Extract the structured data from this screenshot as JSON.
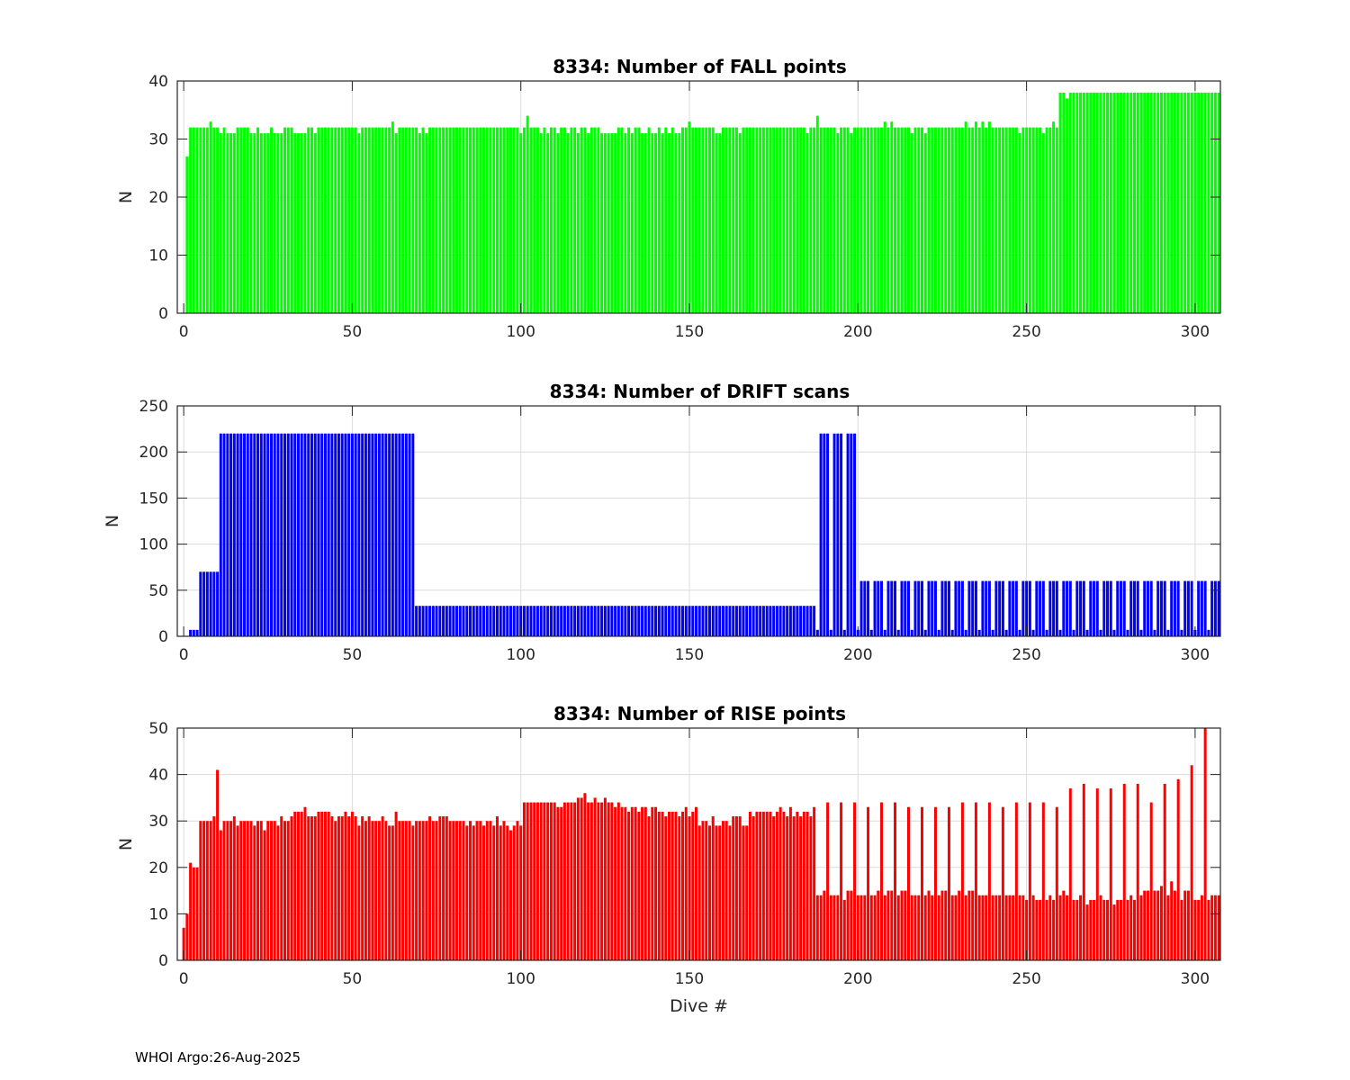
{
  "chart_data": [
    {
      "type": "bar",
      "title": "8334: Number of FALL points",
      "xlabel": "",
      "ylabel": "N",
      "color": "#00ff00",
      "xlim": [
        -1.9,
        307.5
      ],
      "ylim": [
        0,
        40
      ],
      "xticks": [
        0,
        50,
        100,
        150,
        200,
        250,
        300
      ],
      "yticks": [
        0,
        10,
        20,
        30,
        40
      ],
      "grid": true,
      "x_start": 0,
      "values": [
        0,
        27,
        32,
        32,
        32,
        32,
        32,
        32,
        33,
        32,
        32,
        31,
        32,
        31,
        31,
        31,
        32,
        32,
        32,
        32,
        31,
        31,
        32,
        31,
        31,
        31,
        32,
        31,
        31,
        31,
        32,
        32,
        32,
        31,
        31,
        31,
        31,
        32,
        32,
        31,
        32,
        32,
        32,
        32,
        32,
        32,
        32,
        32,
        32,
        32,
        32,
        32,
        31,
        32,
        32,
        32,
        32,
        32,
        32,
        32,
        32,
        32,
        33,
        31,
        32,
        32,
        32,
        32,
        32,
        32,
        31,
        32,
        31,
        32,
        32,
        32,
        32,
        32,
        32,
        32,
        32,
        32,
        32,
        32,
        32,
        32,
        32,
        32,
        32,
        32,
        32,
        32,
        32,
        32,
        32,
        32,
        32,
        32,
        32,
        32,
        31,
        32,
        34,
        32,
        32,
        32,
        31,
        32,
        31,
        32,
        32,
        31,
        32,
        32,
        31,
        32,
        32,
        31,
        32,
        32,
        31,
        32,
        32,
        32,
        31,
        31,
        31,
        31,
        31,
        32,
        32,
        31,
        32,
        31,
        32,
        32,
        31,
        31,
        32,
        31,
        31,
        32,
        31,
        32,
        31,
        32,
        31,
        31,
        32,
        32,
        33,
        32,
        32,
        32,
        32,
        32,
        32,
        32,
        31,
        31,
        32,
        32,
        32,
        32,
        32,
        31,
        32,
        32,
        32,
        32,
        32,
        32,
        32,
        32,
        32,
        32,
        32,
        32,
        32,
        32,
        32,
        32,
        32,
        32,
        32,
        31,
        32,
        32,
        34,
        32,
        32,
        32,
        32,
        32,
        31,
        32,
        32,
        32,
        31,
        32,
        32,
        32,
        32,
        32,
        32,
        32,
        32,
        32,
        33,
        32,
        33,
        32,
        32,
        32,
        32,
        32,
        31,
        32,
        32,
        32,
        31,
        32,
        32,
        32,
        32,
        32,
        32,
        32,
        32,
        32,
        32,
        32,
        33,
        32,
        32,
        33,
        32,
        33,
        32,
        33,
        32,
        32,
        32,
        32,
        32,
        32,
        32,
        32,
        31,
        32,
        32,
        32,
        32,
        32,
        32,
        31,
        32,
        32,
        33,
        32,
        38,
        38,
        37,
        38,
        38,
        38,
        38,
        38,
        38,
        38,
        38,
        38,
        38,
        38,
        38,
        38,
        38,
        38,
        38,
        38,
        38,
        38,
        38,
        38,
        38,
        38,
        38,
        38,
        38,
        38,
        38,
        38,
        38,
        38,
        38,
        38,
        38,
        38,
        38,
        38,
        38,
        38,
        38,
        38,
        38,
        38,
        38,
        38
      ]
    },
    {
      "type": "bar",
      "title": "8334: Number of DRIFT scans",
      "xlabel": "",
      "ylabel": "N",
      "color": "#0000ff",
      "xlim": [
        -1.9,
        307.5
      ],
      "ylim": [
        0,
        250
      ],
      "xticks": [
        0,
        50,
        100,
        150,
        200,
        250,
        300
      ],
      "yticks": [
        0,
        50,
        100,
        150,
        200,
        250
      ],
      "grid": true,
      "x_start": 0,
      "values": [
        0,
        0,
        7,
        7,
        7,
        70,
        70,
        70,
        70,
        70,
        70,
        220,
        220,
        220,
        220,
        220,
        220,
        220,
        220,
        220,
        220,
        220,
        220,
        220,
        220,
        220,
        220,
        220,
        220,
        220,
        220,
        220,
        220,
        220,
        220,
        220,
        220,
        220,
        220,
        220,
        220,
        220,
        220,
        220,
        220,
        220,
        220,
        220,
        220,
        220,
        220,
        220,
        220,
        220,
        220,
        220,
        220,
        220,
        220,
        220,
        220,
        220,
        220,
        220,
        220,
        220,
        220,
        220,
        220,
        33,
        33,
        33,
        33,
        33,
        33,
        33,
        33,
        33,
        33,
        33,
        33,
        33,
        33,
        33,
        33,
        33,
        33,
        33,
        33,
        33,
        33,
        33,
        33,
        33,
        33,
        33,
        33,
        33,
        33,
        33,
        33,
        33,
        33,
        33,
        33,
        33,
        33,
        33,
        33,
        33,
        33,
        33,
        33,
        33,
        33,
        33,
        33,
        33,
        33,
        33,
        33,
        33,
        33,
        33,
        33,
        33,
        33,
        33,
        33,
        33,
        33,
        33,
        33,
        33,
        33,
        33,
        33,
        33,
        33,
        33,
        33,
        33,
        33,
        33,
        33,
        33,
        33,
        33,
        33,
        33,
        33,
        33,
        33,
        33,
        33,
        33,
        33,
        33,
        33,
        33,
        33,
        33,
        33,
        33,
        33,
        33,
        33,
        33,
        33,
        33,
        33,
        33,
        33,
        33,
        33,
        33,
        33,
        33,
        33,
        33,
        33,
        33,
        33,
        33,
        33,
        33,
        33,
        33,
        7,
        220,
        220,
        220,
        7,
        220,
        220,
        220,
        7,
        220,
        220,
        220,
        7,
        60,
        60,
        60,
        7,
        60,
        60,
        60,
        7,
        60,
        60,
        60,
        7,
        60,
        60,
        60,
        7,
        60,
        60,
        60,
        7,
        60,
        60,
        60,
        7,
        60,
        60,
        60,
        7,
        60,
        60,
        60,
        7,
        60,
        60,
        60,
        7,
        60,
        60,
        60,
        7,
        60,
        60,
        60,
        7,
        60,
        60,
        60,
        7,
        60,
        60,
        60,
        7,
        60,
        60,
        60,
        7,
        60,
        60,
        60,
        7,
        60,
        60,
        60,
        7,
        60,
        60,
        60,
        7,
        60,
        60,
        60,
        7,
        60,
        60,
        60,
        7,
        60,
        60,
        60,
        7,
        60,
        60,
        60,
        7,
        60,
        60,
        60,
        7,
        60,
        60,
        60,
        7,
        60,
        60,
        60,
        7,
        60,
        60,
        60,
        7,
        60,
        60,
        60,
        7,
        60,
        60,
        60
      ]
    },
    {
      "type": "bar",
      "title": "8334: Number of RISE points",
      "xlabel": "Dive #",
      "ylabel": "N",
      "color": "#ff0000",
      "xlim": [
        -1.9,
        307.5
      ],
      "ylim": [
        0,
        50
      ],
      "xticks": [
        0,
        50,
        100,
        150,
        200,
        250,
        300
      ],
      "yticks": [
        0,
        10,
        20,
        30,
        40,
        50
      ],
      "grid": true,
      "x_start": 0,
      "values": [
        7,
        10,
        21,
        20,
        20,
        30,
        30,
        30,
        30,
        31,
        41,
        28,
        30,
        30,
        30,
        31,
        29,
        30,
        30,
        30,
        30,
        29,
        30,
        30,
        28,
        30,
        30,
        30,
        29,
        31,
        30,
        30,
        31,
        32,
        32,
        32,
        33,
        31,
        31,
        31,
        32,
        32,
        32,
        32,
        31,
        30,
        31,
        31,
        32,
        31,
        32,
        31,
        29,
        31,
        30,
        31,
        30,
        30,
        30,
        31,
        30,
        29,
        29,
        32,
        30,
        30,
        30,
        30,
        29,
        30,
        30,
        30,
        30,
        31,
        30,
        30,
        31,
        31,
        31,
        30,
        30,
        30,
        30,
        30,
        29,
        30,
        29,
        30,
        30,
        29,
        30,
        30,
        29,
        31,
        29,
        30,
        29,
        28,
        29,
        30,
        29,
        34,
        34,
        34,
        34,
        34,
        34,
        34,
        34,
        34,
        34,
        33,
        33,
        34,
        34,
        34,
        34,
        35,
        35,
        36,
        34,
        34,
        35,
        34,
        34,
        35,
        34,
        34,
        33,
        34,
        33,
        33,
        32,
        33,
        33,
        32,
        33,
        33,
        31,
        33,
        33,
        32,
        32,
        31,
        32,
        32,
        32,
        31,
        32,
        33,
        31,
        32,
        33,
        29,
        30,
        30,
        29,
        31,
        29,
        29,
        30,
        30,
        29,
        31,
        31,
        31,
        29,
        29,
        32,
        31,
        32,
        32,
        32,
        32,
        32,
        31,
        32,
        33,
        32,
        31,
        33,
        31,
        32,
        31,
        32,
        32,
        31,
        33,
        14,
        14,
        15,
        34,
        14,
        14,
        14,
        34,
        13,
        15,
        15,
        34,
        14,
        14,
        14,
        33,
        14,
        14,
        15,
        34,
        14,
        15,
        15,
        34,
        14,
        15,
        15,
        33,
        14,
        14,
        14,
        33,
        14,
        15,
        14,
        33,
        14,
        15,
        15,
        33,
        14,
        14,
        15,
        34,
        14,
        15,
        15,
        34,
        14,
        14,
        14,
        34,
        14,
        14,
        14,
        33,
        14,
        14,
        14,
        34,
        14,
        14,
        13,
        34,
        14,
        13,
        13,
        34,
        13,
        14,
        13,
        33,
        14,
        15,
        14,
        37,
        13,
        13,
        14,
        38,
        12,
        13,
        13,
        37,
        14,
        13,
        13,
        37,
        12,
        13,
        13,
        38,
        13,
        14,
        13,
        38,
        14,
        15,
        15,
        34,
        15,
        15,
        16,
        38,
        14,
        17,
        15,
        39,
        13,
        15,
        15,
        42,
        13,
        13,
        14,
        50,
        13,
        14,
        14,
        14
      ]
    }
  ],
  "footer": "WHOI Argo:26-Aug-2025"
}
